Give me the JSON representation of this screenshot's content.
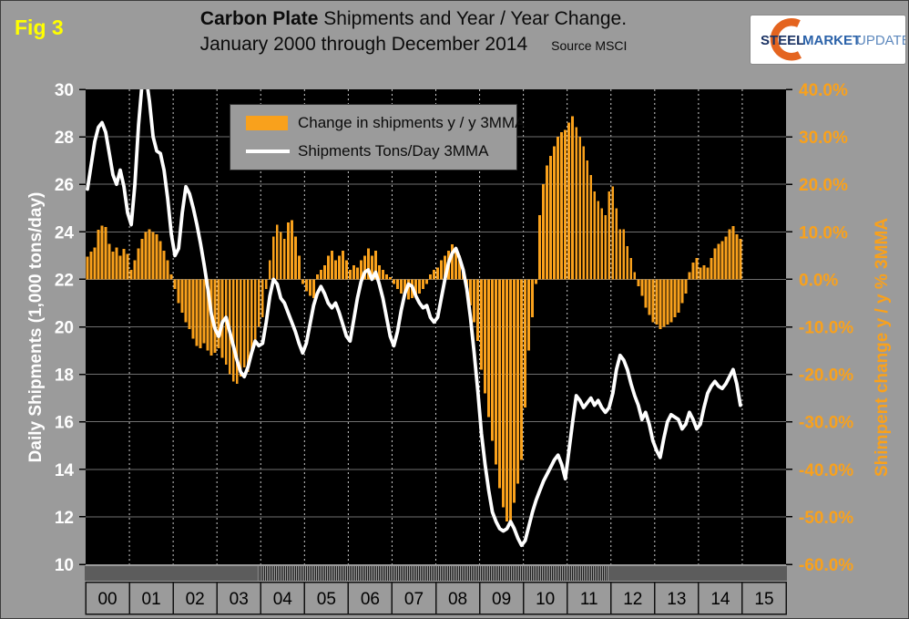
{
  "fig_label": "Fig 3",
  "title": {
    "bold": "Carbon Plate",
    "rest": "Shipments and Year / Year Change.",
    "line2": "January 2000 through December 2014",
    "source": "Source MSCI"
  },
  "logo": {
    "word1": "STEEL",
    "word2": "MARKET",
    "word3": "UPDATE"
  },
  "legend": [
    {
      "label": "Change in shipments y / y 3MMA",
      "swatch": "orange-bar"
    },
    {
      "label": "Shipments Tons/Day 3MMA",
      "swatch": "white-line"
    }
  ],
  "left_axis": {
    "title": "Daily Shipments (1,000 tons/day)",
    "tick_values": [
      30,
      28,
      26,
      24,
      22,
      20,
      18,
      16,
      14,
      12,
      10
    ],
    "min": 10,
    "max": 30
  },
  "right_axis": {
    "title": "Shimpent change y / y % 3MMA",
    "tick_labels": [
      "40.0%",
      "30.0%",
      "20.0%",
      "10.0%",
      "0.0%",
      "-10.0%",
      "-20.0%",
      "-30.0%",
      "-40.0%",
      "-50.0%",
      "-60.0%"
    ],
    "tick_values": [
      40,
      30,
      20,
      10,
      0,
      -10,
      -20,
      -30,
      -40,
      -50,
      -60
    ],
    "min": -60,
    "max": 40
  },
  "x_axis": {
    "years": [
      "00",
      "01",
      "02",
      "03",
      "04",
      "05",
      "06",
      "07",
      "08",
      "09",
      "10",
      "11",
      "12",
      "13",
      "14",
      "15"
    ]
  },
  "colors": {
    "background": "#9B9B9B",
    "plot_background": "#000000",
    "bar_orange": "#F9A11C",
    "line_white": "#FFFFFF",
    "grid_gray": "#6F6F6F",
    "dashed_gray": "#CCCCCC",
    "fig_yellow": "#FFFF00",
    "left_text": "#FFFFFF",
    "right_text": "#F9A11C",
    "logo_navy": "#1A3263",
    "logo_blue": "#2B62A9",
    "logo_lightblue": "#5D88BD",
    "logo_orange": "#E4641F"
  },
  "chart_data": {
    "type": "bar",
    "title": "Carbon Plate Shipments and Year / Year Change. January 2000 through December 2014",
    "x_start": "2000-01",
    "x_end": "2014-12",
    "months_per_year": 12,
    "left_ylim": [
      10,
      30
    ],
    "right_ylim": [
      -60,
      40
    ],
    "grid": true,
    "legend_position": "top-left",
    "series": [
      {
        "name": "Change in shipments y / y 3MMA",
        "type": "bar",
        "axis": "right",
        "unit": "%",
        "values": [
          4.8,
          5.8,
          6.7,
          10.4,
          11.3,
          11.0,
          7.5,
          5.8,
          6.7,
          5.0,
          6.4,
          5.4,
          2.0,
          4.0,
          6.5,
          8.5,
          10.0,
          10.5,
          10.0,
          9.5,
          8.0,
          6.0,
          4.0,
          1.0,
          -2.0,
          -5.0,
          -7.0,
          -9.0,
          -10.5,
          -12.5,
          -14.0,
          -14.5,
          -13.5,
          -15.0,
          -16.0,
          -15.5,
          -14.5,
          -16.5,
          -18.0,
          -20.0,
          -21.5,
          -22.0,
          -20.5,
          -18.5,
          -19.5,
          -16.0,
          -13.0,
          -10.0,
          -8.0,
          -2.0,
          4.0,
          9.0,
          11.5,
          10.0,
          8.5,
          12.0,
          12.5,
          9.0,
          5.0,
          -1.0,
          -2.5,
          -3.5,
          -4.0,
          1.0,
          2.0,
          3.0,
          5.0,
          6.0,
          4.0,
          5.0,
          6.0,
          4.0,
          2.0,
          3.0,
          2.5,
          4.0,
          5.0,
          6.5,
          5.0,
          6.0,
          3.0,
          2.0,
          1.0,
          0.5,
          -1.0,
          -2.0,
          -3.0,
          -3.5,
          -4.2,
          -4.0,
          -3.5,
          -3.0,
          -2.0,
          -1.0,
          1.0,
          2.0,
          2.5,
          4.0,
          5.0,
          6.0,
          7.4,
          6.5,
          5.0,
          2.0,
          -2.0,
          -5.5,
          -9.0,
          -13.0,
          -19.0,
          -24.0,
          -29.0,
          -34.0,
          -39.0,
          -44.0,
          -48.0,
          -51.0,
          -51.0,
          -47.0,
          -43.0,
          -38.0,
          -27.0,
          -15.0,
          -8.0,
          -1.0,
          13.5,
          20.0,
          24.0,
          26.0,
          28.0,
          30.0,
          31.0,
          31.5,
          33.0,
          34.3,
          32.0,
          30.0,
          28.0,
          25.0,
          22.0,
          18.5,
          16.5,
          15.0,
          13.5,
          18.5,
          19.6,
          15.0,
          10.5,
          10.5,
          7.0,
          4.5,
          1.5,
          -1.5,
          -3.5,
          -6.0,
          -7.5,
          -9.0,
          -9.5,
          -10.5,
          -10.0,
          -9.5,
          -9.0,
          -8.0,
          -7.0,
          -5.0,
          -3.0,
          1.5,
          3.5,
          4.5,
          2.5,
          3.0,
          2.5,
          4.5,
          6.5,
          7.5,
          8.0,
          9.0,
          10.5,
          11.2,
          9.5,
          8.5
        ]
      },
      {
        "name": "Shipments Tons/Day 3MMA",
        "type": "line",
        "axis": "left",
        "unit": "1,000 tons/day",
        "values": [
          25.8,
          26.8,
          27.8,
          28.4,
          28.6,
          28.2,
          27.3,
          26.4,
          26.0,
          26.6,
          25.9,
          24.8,
          24.3,
          26.0,
          28.5,
          30.3,
          30.6,
          29.5,
          28.0,
          27.4,
          27.3,
          26.6,
          25.4,
          23.9,
          23.0,
          23.3,
          24.8,
          25.9,
          25.6,
          25.0,
          24.3,
          23.5,
          22.6,
          21.6,
          20.5,
          19.9,
          19.6,
          20.2,
          20.4,
          19.8,
          19.2,
          18.6,
          18.1,
          17.9,
          18.3,
          18.9,
          19.4,
          19.2,
          19.3,
          20.2,
          21.3,
          22.0,
          21.8,
          21.2,
          21.0,
          20.6,
          20.2,
          19.8,
          19.3,
          18.9,
          19.3,
          20.1,
          20.9,
          21.4,
          21.7,
          21.4,
          21.0,
          20.8,
          21.0,
          20.6,
          20.1,
          19.6,
          19.4,
          20.3,
          21.2,
          21.9,
          22.3,
          22.4,
          22.0,
          22.3,
          21.8,
          21.2,
          20.4,
          19.6,
          19.2,
          19.8,
          20.7,
          21.4,
          21.8,
          21.7,
          21.3,
          21.0,
          20.8,
          20.9,
          20.4,
          20.2,
          20.4,
          21.2,
          22.0,
          22.7,
          23.1,
          23.3,
          22.9,
          22.4,
          21.6,
          20.4,
          18.9,
          17.3,
          15.5,
          14.2,
          13.1,
          12.2,
          11.8,
          11.5,
          11.4,
          11.5,
          11.8,
          11.5,
          11.1,
          10.8,
          11.0,
          11.6,
          12.2,
          12.7,
          13.1,
          13.5,
          13.8,
          14.1,
          14.4,
          14.6,
          14.2,
          13.6,
          14.8,
          16.0,
          17.1,
          16.9,
          16.6,
          16.8,
          17.0,
          16.7,
          16.9,
          16.6,
          16.4,
          16.6,
          17.2,
          18.2,
          18.8,
          18.6,
          18.2,
          17.6,
          17.1,
          16.7,
          16.1,
          16.4,
          15.9,
          15.2,
          14.8,
          14.5,
          15.3,
          16.0,
          16.3,
          16.2,
          16.1,
          15.7,
          15.9,
          16.4,
          16.1,
          15.7,
          15.9,
          16.6,
          17.2,
          17.5,
          17.7,
          17.5,
          17.4,
          17.6,
          17.9,
          18.2,
          17.6,
          16.7
        ]
      }
    ]
  }
}
